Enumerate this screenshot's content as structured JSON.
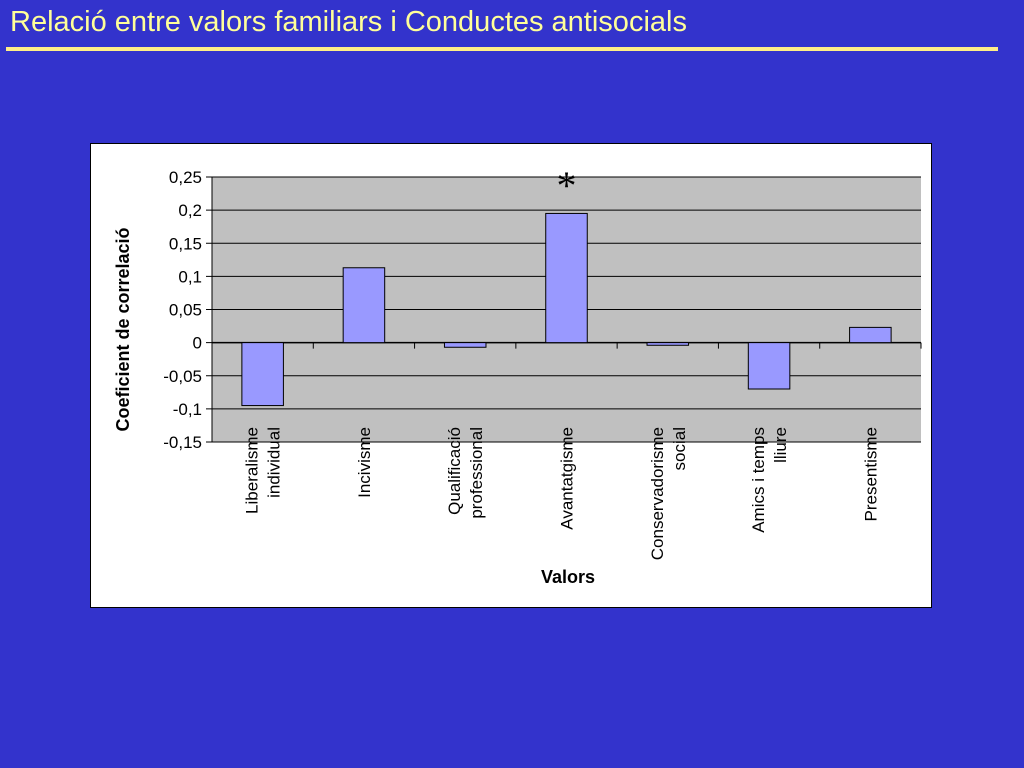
{
  "slide": {
    "title": "Relació entre valors familiars i Conductes antisocials"
  },
  "colors": {
    "background": "#3333cc",
    "title": "#ffff99",
    "plot_area": "#c0c0c0",
    "bar_fill": "#9999ff"
  },
  "chart_data": {
    "type": "bar",
    "title": "",
    "xlabel": "Valors",
    "ylabel": "Coeficient de correlació",
    "ylim": [
      -0.15,
      0.25
    ],
    "yticks": [
      0.25,
      0.2,
      0.15,
      0.1,
      0.05,
      0,
      -0.05,
      -0.1,
      -0.15
    ],
    "ytick_labels": [
      "0,25",
      "0,2",
      "0,15",
      "0,1",
      "0,05",
      "0",
      "-0,05",
      "-0,1",
      "-0,15"
    ],
    "grid": true,
    "legend": "none",
    "categories": [
      [
        "Liberalisme",
        "individual"
      ],
      [
        "Incivisme"
      ],
      [
        "Qualificació",
        "professional"
      ],
      [
        "Avantatgisme"
      ],
      [
        "Conservadorisme",
        "social"
      ],
      [
        "Amics i temps",
        "lliure"
      ],
      [
        "Presentisme"
      ]
    ],
    "values": [
      -0.095,
      0.113,
      -0.007,
      0.195,
      -0.004,
      -0.07,
      0.023
    ],
    "annotations": [
      {
        "category_index": 3,
        "text": "*"
      }
    ]
  }
}
